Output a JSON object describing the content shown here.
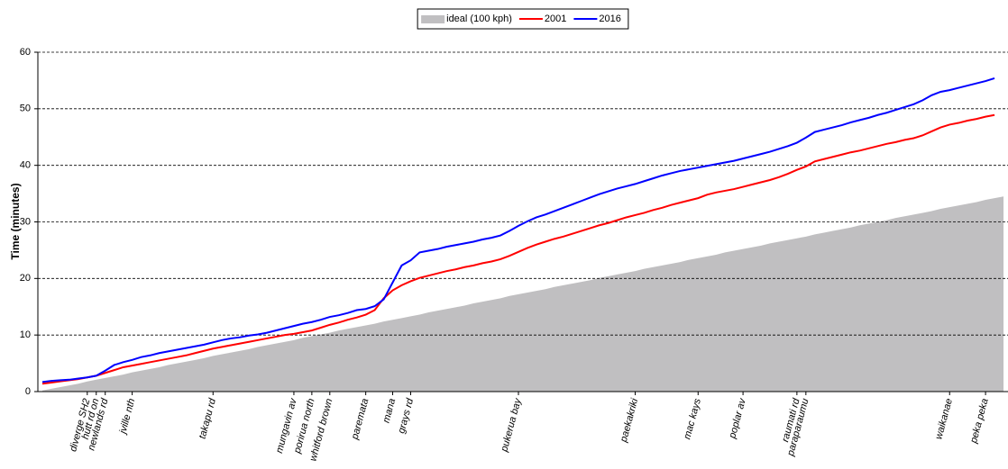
{
  "chart_data": {
    "type": "line",
    "y_label": "Time (minutes)",
    "categories": [
      null,
      null,
      null,
      null,
      null,
      "diverge SH2",
      "hutt rd on",
      "newlands rd",
      null,
      null,
      "jville nth",
      null,
      null,
      null,
      null,
      null,
      null,
      null,
      null,
      "takapu rd",
      null,
      null,
      null,
      null,
      null,
      null,
      null,
      null,
      "mungavin av",
      null,
      "porirua north",
      null,
      "whitford brown",
      null,
      null,
      null,
      "paremata",
      null,
      null,
      "mana",
      null,
      "grays rd",
      null,
      null,
      null,
      null,
      null,
      null,
      null,
      null,
      null,
      null,
      null,
      "pukerua bay",
      null,
      null,
      null,
      null,
      null,
      null,
      null,
      null,
      null,
      null,
      null,
      null,
      "paekakriki",
      null,
      null,
      null,
      null,
      null,
      null,
      "mac kays",
      null,
      null,
      null,
      null,
      "poplar av",
      null,
      null,
      null,
      null,
      null,
      "raumati rd",
      "paraparaumu",
      null,
      null,
      null,
      null,
      null,
      null,
      null,
      null,
      null,
      null,
      null,
      null,
      null,
      null,
      null,
      "waikanae",
      null,
      null,
      null,
      "peka peka",
      null,
      null
    ],
    "series": [
      {
        "name": "ideal (100 kph)",
        "color": "#c0bfc1",
        "style": "area",
        "values": [
          0.2,
          0.5,
          0.8,
          1.1,
          1.4,
          1.8,
          2.1,
          2.4,
          2.7,
          3.0,
          3.4,
          3.7,
          4.0,
          4.3,
          4.7,
          5.0,
          5.3,
          5.6,
          5.9,
          6.3,
          6.6,
          6.9,
          7.2,
          7.5,
          7.9,
          8.2,
          8.5,
          8.8,
          9.1,
          9.5,
          9.8,
          10.1,
          10.4,
          10.8,
          11.1,
          11.4,
          11.7,
          12.0,
          12.4,
          12.7,
          13.0,
          13.3,
          13.6,
          14.0,
          14.3,
          14.6,
          14.9,
          15.2,
          15.6,
          15.9,
          16.2,
          16.5,
          16.9,
          17.2,
          17.5,
          17.8,
          18.1,
          18.5,
          18.8,
          19.1,
          19.4,
          19.7,
          20.1,
          20.4,
          20.7,
          21.0,
          21.3,
          21.7,
          22.0,
          22.3,
          22.6,
          22.9,
          23.3,
          23.6,
          23.9,
          24.2,
          24.6,
          24.9,
          25.2,
          25.5,
          25.8,
          26.2,
          26.5,
          26.8,
          27.1,
          27.4,
          27.8,
          28.1,
          28.4,
          28.7,
          29.0,
          29.4,
          29.7,
          30.0,
          30.3,
          30.7,
          31.0,
          31.3,
          31.6,
          31.9,
          32.3,
          32.6,
          32.9,
          33.2,
          33.5,
          33.9,
          34.2,
          34.5
        ]
      },
      {
        "name": "2001",
        "color": "#ff0000",
        "style": "line",
        "values": [
          1.4,
          1.6,
          1.8,
          2.0,
          2.2,
          2.5,
          2.8,
          3.3,
          3.8,
          4.3,
          4.6,
          4.9,
          5.2,
          5.5,
          5.8,
          6.1,
          6.4,
          6.8,
          7.2,
          7.6,
          7.9,
          8.2,
          8.5,
          8.8,
          9.1,
          9.4,
          9.7,
          10.0,
          10.2,
          10.5,
          10.8,
          11.3,
          11.8,
          12.2,
          12.7,
          13.1,
          13.6,
          14.4,
          16.5,
          17.9,
          18.8,
          19.5,
          20.1,
          20.5,
          20.9,
          21.3,
          21.6,
          22.0,
          22.3,
          22.7,
          23.0,
          23.4,
          24.0,
          24.7,
          25.4,
          26.0,
          26.5,
          27.0,
          27.4,
          27.9,
          28.4,
          28.9,
          29.4,
          29.8,
          30.3,
          30.8,
          31.2,
          31.6,
          32.1,
          32.5,
          33.0,
          33.4,
          33.8,
          34.2,
          34.8,
          35.2,
          35.5,
          35.8,
          36.2,
          36.6,
          37.0,
          37.4,
          37.9,
          38.5,
          39.2,
          39.8,
          40.7,
          41.1,
          41.5,
          41.9,
          42.3,
          42.6,
          43.0,
          43.4,
          43.8,
          44.1,
          44.5,
          44.8,
          45.3,
          46.0,
          46.7,
          47.2,
          47.5,
          47.9,
          48.2,
          48.6,
          48.9,
          null
        ]
      },
      {
        "name": "2016",
        "color": "#0000ff",
        "style": "line",
        "values": [
          1.7,
          1.9,
          2.0,
          2.1,
          2.3,
          2.5,
          2.8,
          3.7,
          4.7,
          5.2,
          5.6,
          6.1,
          6.4,
          6.8,
          7.1,
          7.4,
          7.7,
          8.0,
          8.3,
          8.7,
          9.1,
          9.4,
          9.6,
          9.9,
          10.1,
          10.4,
          10.8,
          11.2,
          11.6,
          12.0,
          12.3,
          12.7,
          13.2,
          13.5,
          13.9,
          14.4,
          14.6,
          15.1,
          16.3,
          19.3,
          22.3,
          23.2,
          24.6,
          24.9,
          25.2,
          25.6,
          25.9,
          26.2,
          26.5,
          26.9,
          27.2,
          27.6,
          28.4,
          29.3,
          30.1,
          30.8,
          31.3,
          31.9,
          32.5,
          33.1,
          33.7,
          34.3,
          34.9,
          35.4,
          35.9,
          36.3,
          36.7,
          37.2,
          37.7,
          38.2,
          38.6,
          39.0,
          39.3,
          39.6,
          39.9,
          40.2,
          40.5,
          40.8,
          41.2,
          41.6,
          42.0,
          42.4,
          42.9,
          43.4,
          44.0,
          44.9,
          45.9,
          46.3,
          46.7,
          47.1,
          47.6,
          48.0,
          48.4,
          48.9,
          49.3,
          49.8,
          50.3,
          50.8,
          51.5,
          52.4,
          53.0,
          53.3,
          53.7,
          54.1,
          54.5,
          54.9,
          55.4,
          null
        ]
      }
    ],
    "ylim": [
      0,
      60
    ],
    "yticks": [
      0,
      10,
      20,
      30,
      40,
      50,
      60
    ],
    "grid": true,
    "legend": "top"
  }
}
